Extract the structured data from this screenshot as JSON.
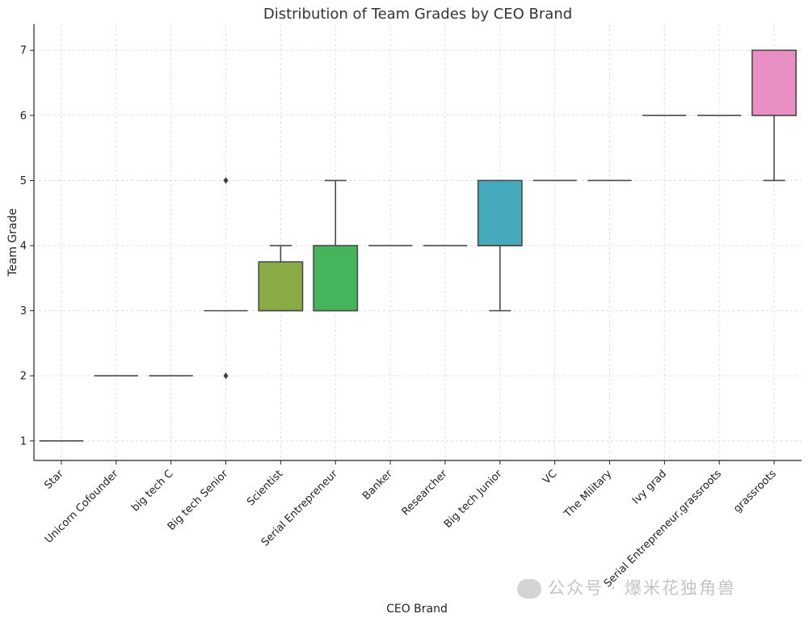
{
  "chart_data": {
    "type": "box",
    "title": "Distribution of Team Grades by CEO Brand",
    "xlabel": "CEO Brand",
    "ylabel": "Team Grade",
    "ylim": [
      0.7,
      7.4
    ],
    "yticks": [
      1,
      2,
      3,
      4,
      5,
      6,
      7
    ],
    "grid": true,
    "categories": [
      "Star",
      "Unicorn Cofounder",
      "big tech C",
      "Big tech Senior",
      "Scientist",
      "Serial Entrepreneur",
      "Banker",
      "Researcher",
      "Big tech Junior",
      "VC",
      "The Military",
      "Ivy grad",
      "Serial Entrepreneur,grassroots",
      "grassroots"
    ],
    "boxes": [
      {
        "category": "Star",
        "whislo": 1,
        "q1": 1,
        "med": 1,
        "q3": 1,
        "whishi": 1,
        "fliers": [],
        "color": "#e84f59"
      },
      {
        "category": "Unicorn Cofounder",
        "whislo": 2,
        "q1": 2,
        "med": 2,
        "q3": 2,
        "whishi": 2,
        "fliers": [],
        "color": "#dc6f4a"
      },
      {
        "category": "big tech C",
        "whislo": 2,
        "q1": 2,
        "med": 2,
        "q3": 2,
        "whishi": 2,
        "fliers": [],
        "color": "#c88a38"
      },
      {
        "category": "Big tech Senior",
        "whislo": 3,
        "q1": 3,
        "med": 3,
        "q3": 3,
        "whishi": 3,
        "fliers": [
          5,
          2
        ],
        "color": "#a89d3a"
      },
      {
        "category": "Scientist",
        "whislo": 3,
        "q1": 3,
        "med": 3,
        "q3": 3.75,
        "whishi": 4,
        "fliers": [],
        "color": "#8aaa45"
      },
      {
        "category": "Serial Entrepreneur",
        "whislo": 3,
        "q1": 3,
        "med": 3,
        "q3": 4,
        "whishi": 5,
        "fliers": [],
        "color": "#45b55c"
      },
      {
        "category": "Banker",
        "whislo": 4,
        "q1": 4,
        "med": 4,
        "q3": 4,
        "whishi": 4,
        "fliers": [],
        "color": "#3fb38c"
      },
      {
        "category": "Researcher",
        "whislo": 4,
        "q1": 4,
        "med": 4,
        "q3": 4,
        "whishi": 4,
        "fliers": [],
        "color": "#3eafa6"
      },
      {
        "category": "Big tech Junior",
        "whislo": 3,
        "q1": 4,
        "med": 4,
        "q3": 5,
        "whishi": 5,
        "fliers": [],
        "color": "#45abbc"
      },
      {
        "category": "VC",
        "whislo": 5,
        "q1": 5,
        "med": 5,
        "q3": 5,
        "whishi": 5,
        "fliers": [],
        "color": "#4aa4d4"
      },
      {
        "category": "The Military",
        "whislo": 5,
        "q1": 5,
        "med": 5,
        "q3": 5,
        "whishi": 5,
        "fliers": [],
        "color": "#7f98e6"
      },
      {
        "category": "Ivy grad",
        "whislo": 6,
        "q1": 6,
        "med": 6,
        "q3": 6,
        "whishi": 6,
        "fliers": [],
        "color": "#b08ae6"
      },
      {
        "category": "Serial Entrepreneur,grassroots",
        "whislo": 6,
        "q1": 6,
        "med": 6,
        "q3": 6,
        "whishi": 6,
        "fliers": [],
        "color": "#da7fd6"
      },
      {
        "category": "grassroots",
        "whislo": 5,
        "q1": 6,
        "med": 6,
        "q3": 7,
        "whishi": 7,
        "fliers": [],
        "color": "#e98fc3"
      }
    ],
    "line_color": "#4a4a4a"
  },
  "watermark": {
    "text": "公众号 · 爆米花独角兽",
    "icon": "wechat-icon"
  }
}
